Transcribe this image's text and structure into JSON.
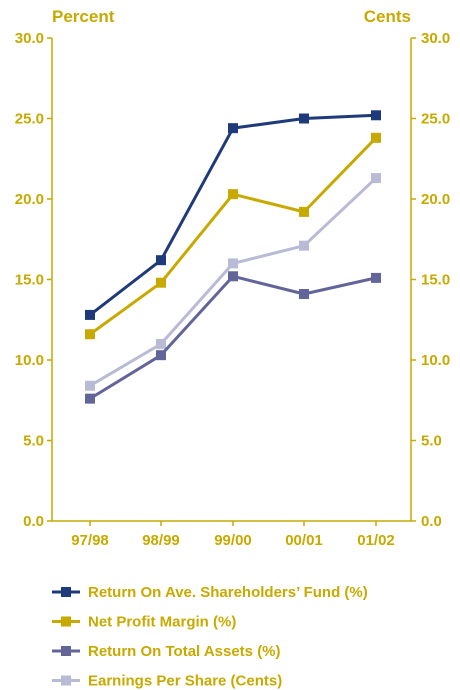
{
  "chart_data": {
    "type": "line",
    "left_axis_title": "Percent",
    "right_axis_title": "Cents",
    "categories": [
      "97/98",
      "98/99",
      "99/00",
      "00/01",
      "01/02"
    ],
    "ylim": [
      0,
      30
    ],
    "y_ticks": [
      "0.0",
      "5.0",
      "10.0",
      "15.0",
      "20.0",
      "25.0",
      "30.0"
    ],
    "grid": false,
    "legend_position": "bottom",
    "axis_color": "#C8A900",
    "series": [
      {
        "name": "Return On Ave. Shareholders’ Fund (%)",
        "color": "#1F3A7A",
        "values": [
          12.8,
          16.2,
          24.4,
          25.0,
          25.2
        ]
      },
      {
        "name": "Net Profit Margin (%)",
        "color": "#C8A900",
        "values": [
          11.6,
          14.8,
          20.3,
          19.2,
          23.8
        ]
      },
      {
        "name": "Return On Total Assets (%)",
        "color": "#62649A",
        "values": [
          7.6,
          10.3,
          15.2,
          14.1,
          15.1
        ]
      },
      {
        "name": "Earnings Per Share (Cents)",
        "color": "#B9BAD6",
        "values": [
          8.4,
          11.0,
          16.0,
          17.1,
          21.3
        ]
      }
    ]
  }
}
